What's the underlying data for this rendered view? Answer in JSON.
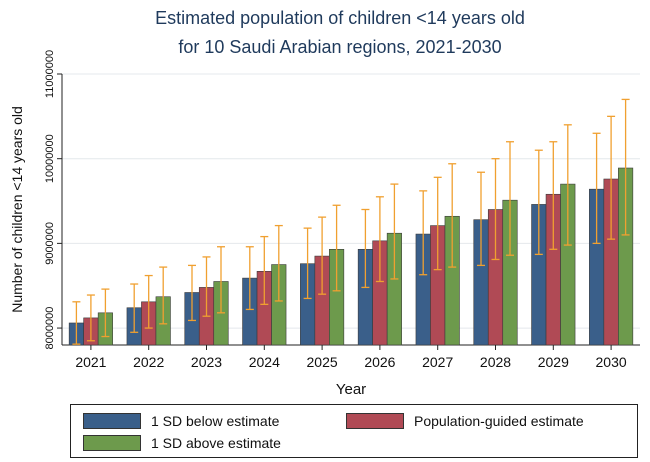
{
  "chart_data": {
    "type": "bar",
    "title_line1": "Estimated population of children <14 years old",
    "title_line2": "for 10 Saudi Arabian regions, 2021-2030",
    "xlabel": "Year",
    "ylabel": "Number of children <14 years old",
    "ylim": [
      7800000,
      11000000
    ],
    "yticks": [
      8000000,
      9000000,
      10000000,
      11000000
    ],
    "ytick_labels": [
      "8000000",
      "9000000",
      "10000000",
      "11000000"
    ],
    "categories": [
      "2021",
      "2022",
      "2023",
      "2024",
      "2025",
      "2026",
      "2027",
      "2028",
      "2029",
      "2030"
    ],
    "series": [
      {
        "name": "1 SD below estimate",
        "color": "#3a5f8a",
        "values": [
          8060000,
          8240000,
          8420000,
          8590000,
          8760000,
          8930000,
          9110000,
          9280000,
          9460000,
          9640000
        ],
        "upper": [
          8310000,
          8520000,
          8740000,
          8960000,
          9180000,
          9400000,
          9620000,
          9840000,
          10100000,
          10300000
        ],
        "lower": [
          7810000,
          7950000,
          8090000,
          8220000,
          8350000,
          8480000,
          8630000,
          8740000,
          8870000,
          9000000
        ]
      },
      {
        "name": "Population-guided estimate",
        "color": "#b04a55",
        "values": [
          8120000,
          8310000,
          8480000,
          8670000,
          8850000,
          9030000,
          9210000,
          9400000,
          9580000,
          9760000
        ],
        "upper": [
          8390000,
          8620000,
          8840000,
          9080000,
          9310000,
          9550000,
          9780000,
          10000000,
          10200000,
          10500000
        ],
        "lower": [
          7850000,
          8000000,
          8140000,
          8280000,
          8400000,
          8550000,
          8690000,
          8810000,
          8930000,
          9050000
        ]
      },
      {
        "name": "1 SD above estimate",
        "color": "#6d9a4c",
        "values": [
          8180000,
          8370000,
          8550000,
          8750000,
          8930000,
          9120000,
          9320000,
          9510000,
          9700000,
          9890000
        ],
        "upper": [
          8460000,
          8720000,
          8960000,
          9210000,
          9450000,
          9700000,
          9940000,
          10200000,
          10400000,
          10700000
        ],
        "lower": [
          7900000,
          8050000,
          8180000,
          8320000,
          8440000,
          8580000,
          8720000,
          8860000,
          8980000,
          9100000
        ]
      }
    ],
    "errorbar_color": "#f0a030",
    "grid": true,
    "legend_position": "bottom"
  }
}
